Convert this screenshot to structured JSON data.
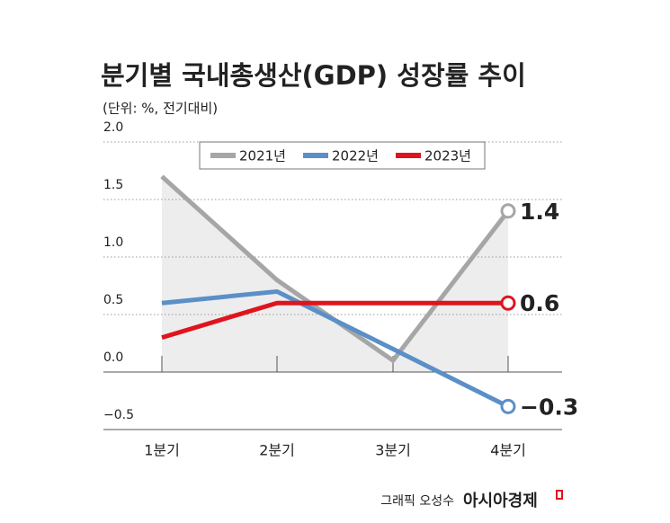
{
  "chart_data": {
    "type": "line",
    "title": "분기별 국내총생산(GDP) 성장률 추이",
    "subtitle": "(단위: %, 전기대비)",
    "categories": [
      "1분기",
      "2분기",
      "3분기",
      "4분기"
    ],
    "series": [
      {
        "name": "2021년",
        "color": "#a6a6a6",
        "values": [
          1.7,
          0.8,
          0.1,
          1.4
        ],
        "value_labels": [
          null,
          null,
          null,
          "1.4"
        ],
        "area": true
      },
      {
        "name": "2022년",
        "color": "#5b8fc7",
        "values": [
          0.6,
          0.7,
          0.2,
          -0.3
        ],
        "value_labels": [
          null,
          null,
          null,
          "−0.3"
        ]
      },
      {
        "name": "2023년",
        "color": "#e0141e",
        "values": [
          0.3,
          0.6,
          0.6,
          0.6
        ],
        "value_labels": [
          null,
          null,
          null,
          "0.6"
        ]
      }
    ],
    "ylim": [
      -0.5,
      2.0
    ],
    "yticks": [
      {
        "value": -0.5,
        "label": "−0.5"
      },
      {
        "value": 0,
        "label": "0.0"
      },
      {
        "value": 0.5,
        "label": "0.5"
      },
      {
        "value": 1,
        "label": "1.0"
      },
      {
        "value": 1.5,
        "label": "1.5"
      },
      {
        "value": 2,
        "label": "2.0"
      }
    ],
    "grid": true,
    "legend": "top",
    "credit": "그래픽 오성수",
    "source": "아시아경제"
  }
}
